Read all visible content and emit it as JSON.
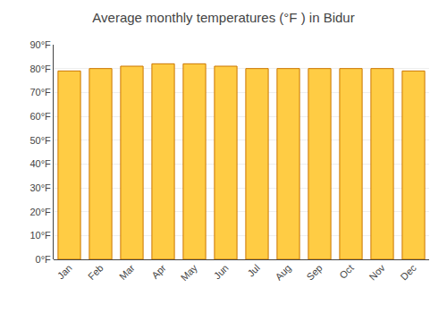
{
  "chart_data": {
    "type": "bar",
    "title": "Average monthly temperatures (°F ) in Bidur",
    "categories": [
      "Jan",
      "Feb",
      "Mar",
      "Apr",
      "May",
      "Jun",
      "Jul",
      "Aug",
      "Sep",
      "Oct",
      "Nov",
      "Dec"
    ],
    "values": [
      79,
      80,
      81,
      82,
      82,
      81,
      80,
      80,
      80,
      80,
      80,
      79
    ],
    "color": "#FFCC44",
    "ylim": [
      0,
      90
    ],
    "yticks": [
      {
        "value": 0,
        "label": "0°F"
      },
      {
        "value": 10,
        "label": "10°F"
      },
      {
        "value": 20,
        "label": "20°F"
      },
      {
        "value": 30,
        "label": "30°F"
      },
      {
        "value": 40,
        "label": "40°F"
      },
      {
        "value": 50,
        "label": "50°F"
      },
      {
        "value": 60,
        "label": "60°F"
      },
      {
        "value": 70,
        "label": "70°F"
      },
      {
        "value": 80,
        "label": "80°F"
      },
      {
        "value": 90,
        "label": "90°F"
      }
    ],
    "grid": true
  }
}
